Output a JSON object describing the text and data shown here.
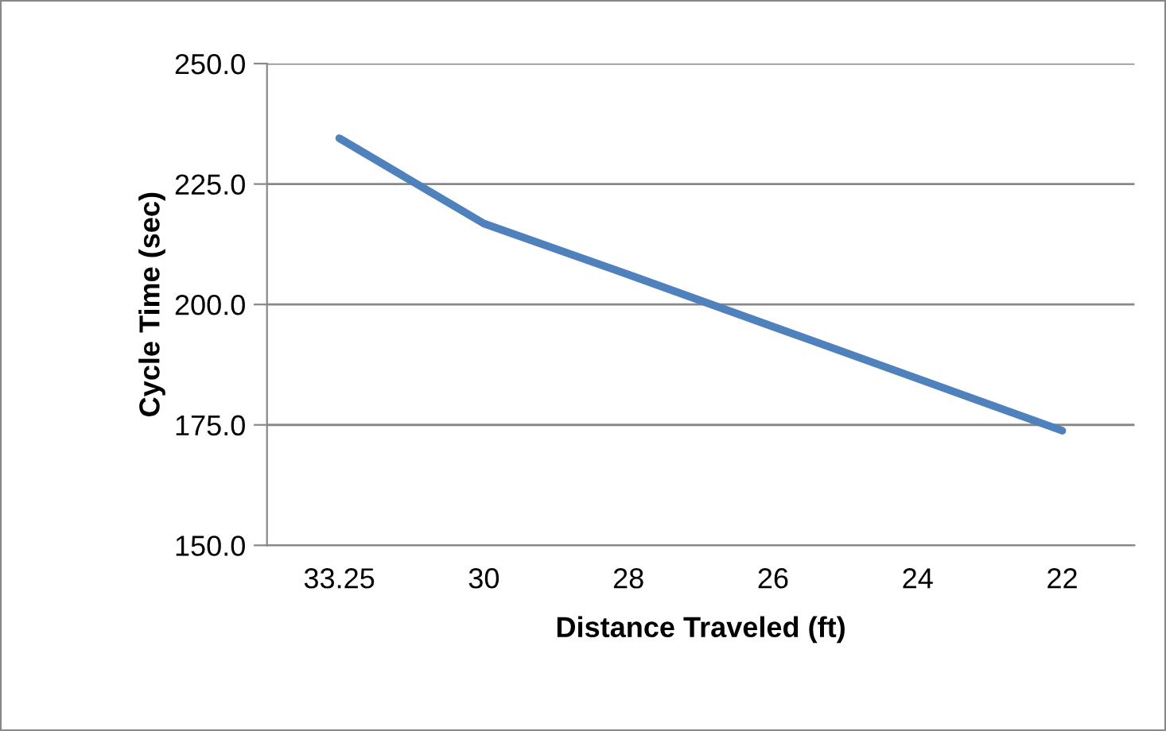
{
  "chart_data": {
    "type": "line",
    "xlabel": "Distance Traveled (ft)",
    "ylabel": "Cycle Time (sec)",
    "categories": [
      "33.25",
      "30",
      "28",
      "26",
      "24",
      "22"
    ],
    "series": [
      {
        "color": "#4f81bd",
        "values": [
          234.5,
          216.8,
          206.2,
          195.4,
          184.6,
          173.8
        ]
      }
    ],
    "ylim": [
      150,
      250
    ],
    "yticks": [
      {
        "value": 150,
        "label": "150.0"
      },
      {
        "value": 175,
        "label": "175.0"
      },
      {
        "value": 200,
        "label": "200.0"
      },
      {
        "value": 225,
        "label": "225.0"
      },
      {
        "value": 250,
        "label": "250.0"
      }
    ],
    "grid": "y",
    "legend": false,
    "marker": "none",
    "line_style": "solid"
  }
}
